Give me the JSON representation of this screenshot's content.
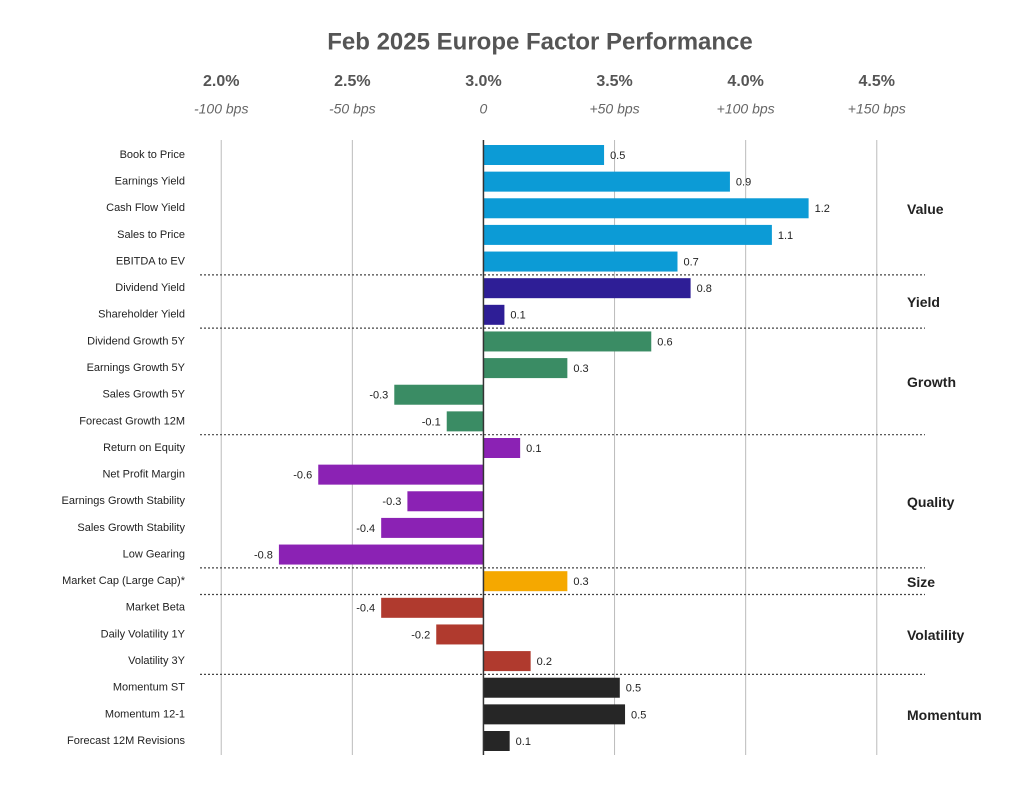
{
  "chart_data": {
    "type": "bar",
    "orientation": "horizontal",
    "title": "Feb 2025 Europe Factor Performance",
    "xlim": [
      -1.1,
      1.6
    ],
    "xticks": [
      {
        "value": -1,
        "label": "-100 bps"
      },
      {
        "value": -0.5,
        "label": "-50 bps"
      },
      0,
      {
        "value": 0.5,
        "label": "+50 bps"
      },
      {
        "value": 1,
        "label": "+100 bps"
      },
      {
        "value": 1.5,
        "label": "+150 bps"
      }
    ],
    "x2lim": [
      1.9,
      4.6
    ],
    "x2ticks": [
      {
        "value": 2,
        "label": "2.0%"
      },
      {
        "value": 2.5,
        "label": "2.5%"
      },
      {
        "value": 3,
        "label": "3.0%"
      },
      {
        "value": 3.5,
        "label": "3.5%"
      },
      {
        "value": 4,
        "label": "4.0%"
      },
      {
        "value": 4.5,
        "label": "4.5%"
      }
    ],
    "grid": true,
    "series": [
      {
        "name": "Value",
        "color": "#0c9bd6",
        "categories": [
          "Book to Price",
          "Earnings Yield",
          "Cash Flow Yield",
          "Sales to Price",
          "EBITDA to EV"
        ],
        "values": [
          0.46,
          0.94,
          1.24,
          1.1,
          0.74
        ],
        "value_labels": [
          "0.5",
          "0.9",
          "1.2",
          "1.1",
          "0.7"
        ]
      },
      {
        "name": "Yield",
        "color": "#2e1e96",
        "categories": [
          "Dividend Yield",
          "Shareholder Yield"
        ],
        "values": [
          0.79,
          0.08
        ],
        "value_labels": [
          "0.8",
          "0.1"
        ]
      },
      {
        "name": "Growth",
        "color": "#3a8c64",
        "categories": [
          "Dividend Growth 5Y",
          "Earnings Growth 5Y",
          "Sales Growth 5Y",
          "Forecast Growth 12M"
        ],
        "values": [
          0.64,
          0.32,
          -0.34,
          -0.14
        ],
        "value_labels": [
          "0.6",
          "0.3",
          "-0.3",
          "-0.1"
        ]
      },
      {
        "name": "Quality",
        "color": "#8b22b4",
        "categories": [
          "Return on Equity",
          "Net Profit Margin",
          "Earnings Growth Stability",
          "Sales Growth Stability",
          "Low Gearing"
        ],
        "values": [
          0.14,
          -0.63,
          -0.29,
          -0.39,
          -0.78
        ],
        "value_labels": [
          "0.1",
          "-0.6",
          "-0.3",
          "-0.4",
          "-0.8"
        ]
      },
      {
        "name": "Size",
        "color": "#f5a800",
        "categories": [
          "Market Cap (Large Cap)*"
        ],
        "values": [
          0.32
        ],
        "value_labels": [
          "0.3"
        ]
      },
      {
        "name": "Volatility",
        "color": "#b03a2e",
        "categories": [
          "Market Beta",
          "Daily Volatility 1Y",
          "Volatility 3Y"
        ],
        "values": [
          -0.39,
          -0.18,
          0.18
        ],
        "value_labels": [
          "-0.4",
          "-0.2",
          "0.2"
        ]
      },
      {
        "name": "Momentum",
        "color": "#262626",
        "categories": [
          "Momentum ST",
          "Momentum 12-1",
          "Forecast 12M Revisions"
        ],
        "values": [
          0.52,
          0.54,
          0.1
        ],
        "value_labels": [
          "0.5",
          "0.5",
          "0.1"
        ]
      }
    ]
  }
}
